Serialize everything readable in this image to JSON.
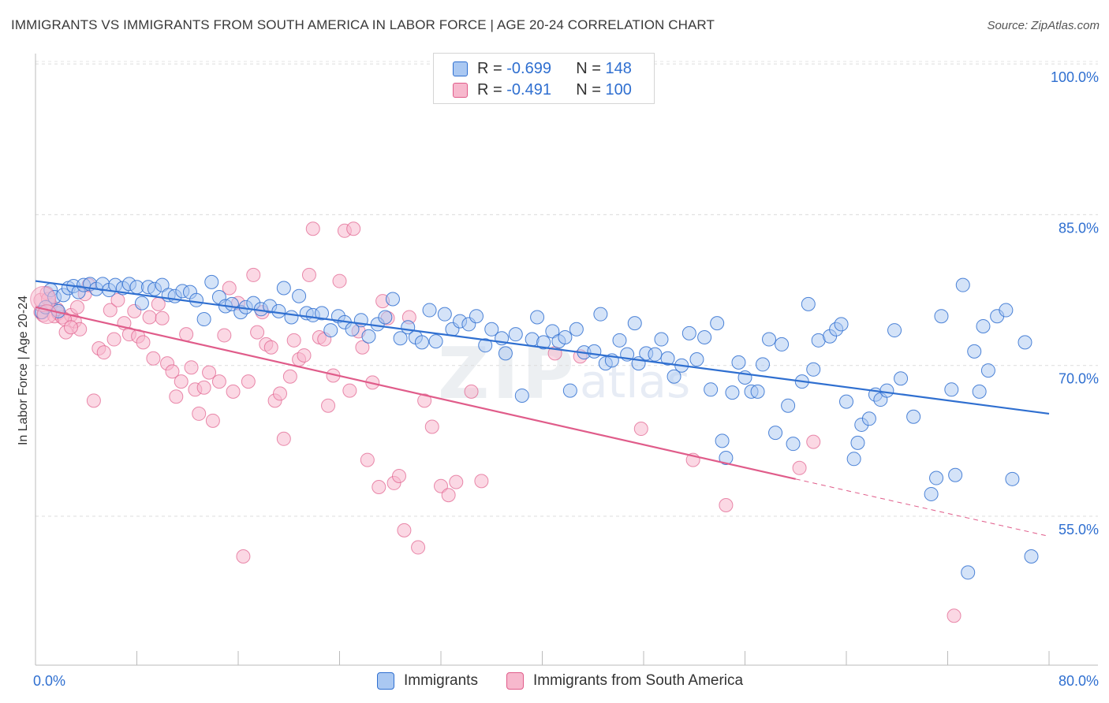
{
  "title": "IMMIGRANTS VS IMMIGRANTS FROM SOUTH AMERICA IN LABOR FORCE | AGE 20-24 CORRELATION CHART",
  "source": "Source: ZipAtlas.com",
  "watermark": "ZIPatlas",
  "colors": {
    "blue": "#2f6fd0",
    "blue_fill": "#aac8f2",
    "pink": "#e05c8a",
    "pink_fill": "#f7b8cd",
    "axis_label": "#2f6fd0"
  },
  "legend": {
    "rows": [
      {
        "r_label": "R =",
        "r_value": "-0.699",
        "n_label": "N =",
        "n_value": "148"
      },
      {
        "r_label": "R =",
        "r_value": "-0.491",
        "n_label": "N =",
        "n_value": "100"
      }
    ]
  },
  "bottom_legend": {
    "series1": "Immigrants",
    "series2": "Immigrants from South America"
  },
  "chart_data": {
    "type": "scatter",
    "xlabel": "",
    "ylabel": "In Labor Force | Age 20-24",
    "xlim": [
      0,
      80
    ],
    "ylim": [
      40,
      104
    ],
    "x_tick_labels": [
      "0.0%",
      "80.0%"
    ],
    "y_tick_labels": [
      "55.0%",
      "70.0%",
      "85.0%",
      "100.0%"
    ],
    "y_ticks": [
      55,
      70,
      85,
      100
    ],
    "grid": true,
    "series": [
      {
        "name": "Immigrants",
        "trend": {
          "x": [
            0,
            80
          ],
          "y": [
            78.4,
            65.2
          ]
        },
        "points": [
          [
            0.5,
            75.3
          ],
          [
            0.8,
            75.8
          ],
          [
            1.2,
            77.5
          ],
          [
            1.5,
            76.8
          ],
          [
            1.8,
            75.4
          ],
          [
            2.2,
            77.0
          ],
          [
            2.6,
            77.7
          ],
          [
            3.0,
            77.9
          ],
          [
            3.4,
            77.3
          ],
          [
            3.8,
            78.0
          ],
          [
            4.3,
            78.1
          ],
          [
            4.8,
            77.6
          ],
          [
            5.3,
            78.1
          ],
          [
            5.8,
            77.5
          ],
          [
            6.3,
            78.0
          ],
          [
            6.9,
            77.7
          ],
          [
            7.4,
            78.1
          ],
          [
            8.0,
            77.8
          ],
          [
            8.4,
            76.2
          ],
          [
            8.9,
            77.8
          ],
          [
            9.4,
            77.6
          ],
          [
            10.0,
            78.0
          ],
          [
            10.5,
            77.0
          ],
          [
            11.0,
            76.9
          ],
          [
            11.6,
            77.4
          ],
          [
            12.2,
            77.3
          ],
          [
            12.7,
            76.5
          ],
          [
            13.3,
            74.6
          ],
          [
            13.9,
            78.3
          ],
          [
            14.5,
            76.8
          ],
          [
            15.0,
            75.9
          ],
          [
            15.5,
            76.1
          ],
          [
            16.2,
            75.3
          ],
          [
            16.6,
            75.8
          ],
          [
            17.2,
            76.2
          ],
          [
            17.8,
            75.6
          ],
          [
            18.5,
            75.9
          ],
          [
            19.2,
            75.4
          ],
          [
            19.6,
            77.7
          ],
          [
            20.2,
            74.8
          ],
          [
            20.8,
            76.9
          ],
          [
            21.4,
            75.2
          ],
          [
            21.9,
            75.0
          ],
          [
            22.6,
            75.2
          ],
          [
            23.3,
            73.5
          ],
          [
            23.9,
            74.9
          ],
          [
            24.4,
            74.3
          ],
          [
            25.0,
            73.6
          ],
          [
            25.7,
            74.5
          ],
          [
            26.3,
            72.9
          ],
          [
            27.0,
            74.1
          ],
          [
            27.6,
            74.8
          ],
          [
            28.2,
            76.6
          ],
          [
            28.8,
            72.7
          ],
          [
            29.4,
            73.8
          ],
          [
            30.0,
            72.8
          ],
          [
            30.5,
            72.3
          ],
          [
            31.1,
            75.5
          ],
          [
            31.6,
            72.4
          ],
          [
            32.3,
            75.1
          ],
          [
            32.9,
            73.6
          ],
          [
            33.5,
            74.4
          ],
          [
            34.2,
            74.1
          ],
          [
            34.8,
            74.9
          ],
          [
            35.5,
            72.0
          ],
          [
            36.0,
            73.6
          ],
          [
            36.8,
            72.7
          ],
          [
            37.1,
            71.2
          ],
          [
            37.9,
            73.1
          ],
          [
            38.4,
            67.0
          ],
          [
            39.2,
            72.6
          ],
          [
            39.6,
            74.8
          ],
          [
            40.1,
            72.3
          ],
          [
            40.8,
            73.4
          ],
          [
            41.3,
            72.4
          ],
          [
            41.8,
            72.8
          ],
          [
            42.2,
            67.5
          ],
          [
            42.7,
            73.6
          ],
          [
            43.3,
            71.3
          ],
          [
            44.1,
            71.4
          ],
          [
            44.6,
            75.1
          ],
          [
            45.0,
            70.2
          ],
          [
            45.5,
            70.5
          ],
          [
            46.1,
            72.5
          ],
          [
            46.7,
            71.1
          ],
          [
            47.3,
            74.2
          ],
          [
            47.6,
            70.2
          ],
          [
            48.2,
            71.2
          ],
          [
            48.9,
            71.1
          ],
          [
            49.4,
            72.6
          ],
          [
            49.9,
            70.7
          ],
          [
            50.4,
            68.9
          ],
          [
            51.0,
            70.0
          ],
          [
            51.6,
            73.2
          ],
          [
            52.2,
            70.6
          ],
          [
            52.8,
            72.8
          ],
          [
            53.3,
            67.6
          ],
          [
            53.8,
            74.2
          ],
          [
            54.2,
            62.5
          ],
          [
            54.5,
            60.8
          ],
          [
            55.0,
            67.3
          ],
          [
            55.5,
            70.3
          ],
          [
            56.0,
            68.8
          ],
          [
            56.5,
            67.4
          ],
          [
            57.0,
            67.4
          ],
          [
            57.4,
            70.1
          ],
          [
            57.9,
            72.6
          ],
          [
            58.4,
            63.3
          ],
          [
            58.9,
            72.1
          ],
          [
            59.4,
            66.0
          ],
          [
            59.8,
            62.2
          ],
          [
            60.5,
            68.4
          ],
          [
            61.0,
            76.1
          ],
          [
            61.4,
            69.6
          ],
          [
            61.8,
            72.5
          ],
          [
            62.7,
            72.9
          ],
          [
            63.2,
            73.6
          ],
          [
            63.6,
            74.1
          ],
          [
            64.0,
            66.4
          ],
          [
            64.6,
            60.7
          ],
          [
            64.9,
            62.3
          ],
          [
            65.2,
            64.1
          ],
          [
            65.8,
            64.7
          ],
          [
            66.3,
            67.1
          ],
          [
            66.7,
            66.6
          ],
          [
            67.2,
            67.5
          ],
          [
            67.8,
            73.5
          ],
          [
            68.3,
            68.7
          ],
          [
            69.3,
            64.9
          ],
          [
            70.7,
            57.2
          ],
          [
            71.1,
            58.8
          ],
          [
            71.5,
            74.9
          ],
          [
            72.3,
            67.6
          ],
          [
            72.6,
            59.1
          ],
          [
            73.2,
            78.0
          ],
          [
            73.6,
            49.4
          ],
          [
            74.1,
            71.4
          ],
          [
            74.5,
            67.4
          ],
          [
            74.8,
            73.9
          ],
          [
            75.2,
            69.5
          ],
          [
            75.9,
            74.9
          ],
          [
            76.6,
            75.5
          ],
          [
            77.1,
            58.7
          ],
          [
            78.1,
            72.3
          ],
          [
            78.6,
            51.0
          ]
        ]
      },
      {
        "name": "Immigrants from South America",
        "trend": {
          "x": [
            0,
            60
          ],
          "y": [
            75.8,
            58.7
          ]
        },
        "trend_ext": {
          "x": [
            60,
            80
          ],
          "y": [
            58.7,
            53.0
          ]
        },
        "points": [
          [
            0.4,
            76.5
          ],
          [
            0.6,
            75.0
          ],
          [
            0.9,
            77.2
          ],
          [
            1.2,
            76.0
          ],
          [
            1.5,
            74.9
          ],
          [
            1.8,
            75.2
          ],
          [
            2.1,
            74.8
          ],
          [
            2.4,
            73.3
          ],
          [
            2.8,
            75.0
          ],
          [
            3.1,
            74.4
          ],
          [
            3.5,
            73.6
          ],
          [
            3.9,
            77.1
          ],
          [
            4.2,
            78.0
          ],
          [
            4.6,
            66.5
          ],
          [
            5.0,
            71.7
          ],
          [
            5.4,
            71.3
          ],
          [
            5.9,
            75.5
          ],
          [
            6.2,
            72.6
          ],
          [
            6.5,
            76.5
          ],
          [
            7.0,
            74.2
          ],
          [
            7.4,
            73.1
          ],
          [
            7.8,
            75.4
          ],
          [
            8.1,
            72.9
          ],
          [
            8.5,
            72.3
          ],
          [
            9.0,
            74.8
          ],
          [
            9.3,
            70.7
          ],
          [
            9.7,
            76.1
          ],
          [
            10.0,
            74.7
          ],
          [
            10.4,
            70.2
          ],
          [
            10.8,
            69.4
          ],
          [
            11.1,
            66.9
          ],
          [
            11.5,
            68.4
          ],
          [
            11.9,
            73.1
          ],
          [
            12.3,
            69.8
          ],
          [
            12.6,
            67.6
          ],
          [
            12.9,
            65.2
          ],
          [
            13.3,
            67.8
          ],
          [
            13.7,
            69.3
          ],
          [
            14.0,
            64.5
          ],
          [
            14.5,
            68.4
          ],
          [
            14.9,
            73.0
          ],
          [
            15.3,
            77.7
          ],
          [
            15.6,
            67.4
          ],
          [
            16.0,
            76.2
          ],
          [
            16.4,
            51.0
          ],
          [
            16.8,
            68.4
          ],
          [
            17.2,
            79.0
          ],
          [
            17.5,
            73.3
          ],
          [
            17.9,
            75.3
          ],
          [
            18.2,
            72.1
          ],
          [
            18.6,
            71.8
          ],
          [
            18.9,
            66.5
          ],
          [
            19.3,
            67.2
          ],
          [
            19.6,
            62.7
          ],
          [
            20.1,
            68.9
          ],
          [
            20.4,
            72.5
          ],
          [
            20.8,
            70.6
          ],
          [
            21.2,
            71.0
          ],
          [
            21.6,
            79.0
          ],
          [
            21.9,
            83.6
          ],
          [
            22.4,
            72.8
          ],
          [
            22.8,
            72.6
          ],
          [
            23.1,
            66.0
          ],
          [
            23.5,
            69.0
          ],
          [
            24.0,
            78.4
          ],
          [
            24.4,
            83.4
          ],
          [
            24.8,
            67.5
          ],
          [
            25.1,
            83.6
          ],
          [
            25.5,
            73.4
          ],
          [
            25.8,
            71.8
          ],
          [
            26.2,
            60.6
          ],
          [
            26.6,
            68.3
          ],
          [
            27.1,
            57.9
          ],
          [
            27.4,
            76.4
          ],
          [
            27.8,
            74.7
          ],
          [
            28.3,
            58.3
          ],
          [
            28.7,
            59.0
          ],
          [
            29.1,
            53.6
          ],
          [
            29.5,
            74.8
          ],
          [
            30.2,
            51.9
          ],
          [
            30.7,
            66.5
          ],
          [
            31.3,
            63.9
          ],
          [
            32.0,
            58.0
          ],
          [
            32.6,
            57.1
          ],
          [
            33.2,
            58.4
          ],
          [
            34.4,
            67.4
          ],
          [
            35.2,
            58.5
          ],
          [
            41.0,
            71.2
          ],
          [
            43.0,
            70.9
          ],
          [
            47.8,
            63.7
          ],
          [
            51.9,
            60.6
          ],
          [
            54.5,
            56.1
          ],
          [
            60.3,
            59.8
          ],
          [
            61.4,
            62.4
          ],
          [
            72.5,
            45.1
          ],
          [
            0.4,
            75.3
          ],
          [
            1.0,
            76.6
          ],
          [
            1.7,
            75.6
          ],
          [
            2.3,
            74.6
          ],
          [
            2.8,
            73.8
          ],
          [
            3.3,
            75.8
          ]
        ]
      }
    ]
  }
}
